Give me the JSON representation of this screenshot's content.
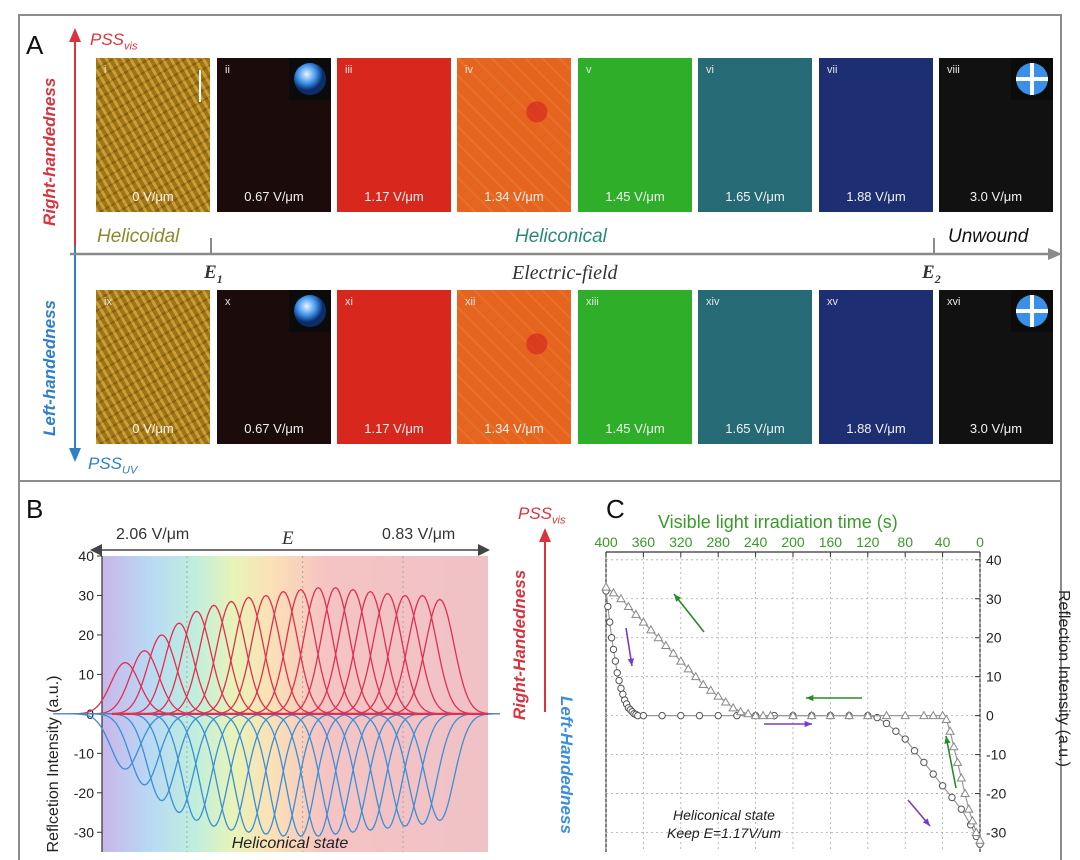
{
  "panelA": {
    "letter": "A",
    "pss_vis": {
      "main": "PSS",
      "sub": "vis"
    },
    "pss_uv": {
      "main": "PSS",
      "sub": "UV"
    },
    "right_handedness": "Right-handedness",
    "left_handedness": "Left-handedness",
    "top_row": [
      {
        "label": "i",
        "field": "0 V/μm",
        "conoscope": false,
        "scalebar": true
      },
      {
        "label": "ii",
        "field": "0.67 V/μm",
        "conoscope": true
      },
      {
        "label": "iii",
        "field": "1.17 V/μm",
        "conoscope": false
      },
      {
        "label": "iv",
        "field": "1.34 V/μm",
        "conoscope": false
      },
      {
        "label": "v",
        "field": "1.45 V/μm",
        "conoscope": false
      },
      {
        "label": "vi",
        "field": "1.65 V/μm",
        "conoscope": false
      },
      {
        "label": "vii",
        "field": "1.88 V/μm",
        "conoscope": false
      },
      {
        "label": "viii",
        "field": "3.0 V/μm",
        "conoscope": true
      }
    ],
    "bottom_row": [
      {
        "label": "ix",
        "field": "0 V/μm",
        "conoscope": false
      },
      {
        "label": "x",
        "field": "0.67 V/μm",
        "conoscope": true
      },
      {
        "label": "xi",
        "field": "1.17 V/μm",
        "conoscope": false
      },
      {
        "label": "xii",
        "field": "1.34 V/μm",
        "conoscope": false
      },
      {
        "label": "xiii",
        "field": "1.45 V/μm",
        "conoscope": false
      },
      {
        "label": "xiv",
        "field": "1.65 V/μm",
        "conoscope": false
      },
      {
        "label": "xv",
        "field": "1.88 V/μm",
        "conoscope": false
      },
      {
        "label": "xvi",
        "field": "3.0 V/μm",
        "conoscope": true
      }
    ],
    "tile_colors": [
      "#b88a1e",
      "#1c0b0b",
      "#d8281e",
      "#e5641e",
      "#2fae2a",
      "#256a74",
      "#1d2f72",
      "#111111"
    ],
    "states": {
      "helicoidal": "Helicoidal",
      "heliconical": "Heliconical",
      "unwound": "Unwound"
    },
    "state_colors": {
      "helicoidal": "#8a8a2a",
      "heliconical": "#2a8a7a",
      "unwound": "#111111"
    },
    "axis_label": "Electric-field",
    "e1": {
      "main": "E",
      "sub": "1"
    },
    "e2": {
      "main": "E",
      "sub": "2"
    }
  },
  "panelB": {
    "letter": "B",
    "e_left": "2.06 V/μm",
    "e_symbol": "E",
    "e_right": "0.83 V/μm",
    "ylabel": "Reflcetion Intensity (a.u.)",
    "state_label": "Heliconical state",
    "right_label": "Right-Handedness",
    "left_label": "Left-Handedness",
    "pss_vis": {
      "main": "PSS",
      "sub": "vis"
    },
    "colors": {
      "right": "#e03050",
      "left": "#3a8fd8"
    },
    "chart_data": {
      "type": "line",
      "ylim": [
        -35,
        40
      ],
      "yticks": [
        "40",
        "30",
        "20",
        "10",
        "0",
        "-10",
        "-20",
        "-30"
      ],
      "series": [
        {
          "peak_positions": [
            0.06,
            0.11,
            0.155,
            0.2,
            0.245,
            0.29,
            0.335,
            0.38,
            0.425,
            0.47,
            0.515,
            0.56,
            0.605,
            0.65,
            0.695,
            0.74,
            0.785,
            0.83,
            0.875
          ],
          "values": [
            13,
            16,
            20,
            23,
            26,
            27.5,
            28.5,
            29.5,
            30,
            31,
            31.5,
            32,
            32,
            31.5,
            31,
            30.5,
            30,
            30,
            29
          ]
        },
        {
          "peak_positions": [
            0.06,
            0.11,
            0.155,
            0.2,
            0.245,
            0.29,
            0.335,
            0.38,
            0.425,
            0.47,
            0.515,
            0.56,
            0.605,
            0.65,
            0.695,
            0.74,
            0.785,
            0.83,
            0.875
          ],
          "values": [
            -14,
            -18,
            -22,
            -25,
            -27,
            -28.5,
            -29.5,
            -30,
            -30.5,
            -31,
            -31,
            -31,
            -30.5,
            -30,
            -29.5,
            -29,
            -28.5,
            -28,
            -27
          ]
        }
      ]
    }
  },
  "panelC": {
    "letter": "C",
    "top_axis_label": "Visible light irradiation time (s)",
    "ylabel": "Reflection Intensity (a.u.)",
    "note_line1": "Heliconical state",
    "note_line2": "Keep E=1.17V/um",
    "colors": {
      "top_axis": "#3a9a2a",
      "green_arrow": "#2a8a2a",
      "purple_arrow": "#7a3ac8"
    },
    "chart_data": {
      "type": "scatter",
      "x_top_ticks": [
        "400",
        "360",
        "320",
        "280",
        "240",
        "200",
        "160",
        "120",
        "80",
        "40",
        "0"
      ],
      "xlim": [
        400,
        0
      ],
      "ylim": [
        -35,
        42
      ],
      "yticks": [
        "40",
        "30",
        "20",
        "10",
        "0",
        "-10",
        "-20",
        "-30"
      ],
      "series": [
        {
          "marker": "circle",
          "x": [
            400,
            398,
            396,
            394,
            392,
            390,
            388,
            386,
            384,
            382,
            380,
            378,
            376,
            374,
            372,
            370,
            368,
            366,
            360,
            340,
            320,
            300,
            280,
            260,
            240,
            220,
            200,
            180,
            160,
            140,
            120,
            110,
            100,
            90,
            80,
            70,
            60,
            50,
            40,
            30,
            20,
            10,
            4,
            0
          ],
          "y": [
            32,
            28,
            24,
            20,
            17,
            14,
            11,
            9,
            7,
            5.5,
            4,
            3,
            2,
            1.5,
            1,
            0.5,
            0.3,
            0,
            0,
            0,
            0,
            0,
            0,
            0,
            0,
            0,
            0,
            0,
            0,
            0,
            0,
            -0.5,
            -2,
            -4,
            -6,
            -9,
            -12,
            -15,
            -18,
            -21,
            -24,
            -28,
            -31,
            -33
          ]
        },
        {
          "marker": "triangle",
          "x": [
            400,
            392,
            384,
            376,
            368,
            360,
            352,
            344,
            336,
            328,
            320,
            312,
            304,
            296,
            288,
            280,
            272,
            264,
            256,
            248,
            240,
            232,
            224,
            200,
            180,
            160,
            140,
            120,
            100,
            80,
            60,
            50,
            40,
            36,
            32,
            28,
            24,
            20,
            16,
            12,
            8,
            4,
            0
          ],
          "y": [
            33,
            31.5,
            30,
            28,
            26,
            24,
            22,
            20,
            18,
            16,
            14,
            12,
            10,
            8,
            6.5,
            5,
            3.5,
            2,
            1,
            0.5,
            0,
            0,
            0,
            0,
            0,
            0,
            0,
            0,
            0,
            0,
            0,
            0,
            0,
            -1,
            -4,
            -8,
            -12,
            -16,
            -20,
            -24,
            -27,
            -30,
            -32
          ]
        }
      ]
    }
  }
}
